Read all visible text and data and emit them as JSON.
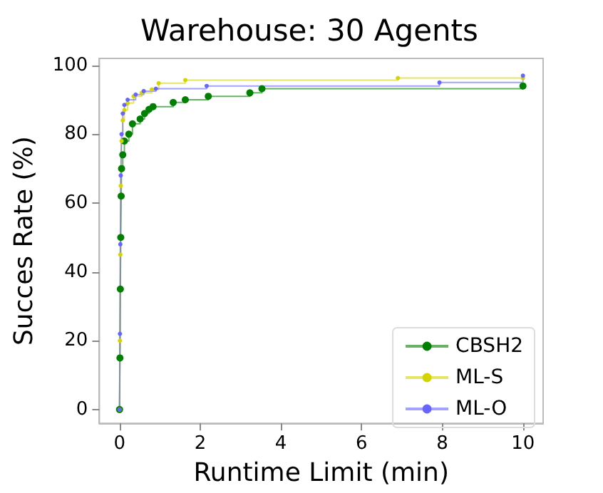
{
  "chart_data": {
    "type": "step",
    "title": "Warehouse: 30 Agents",
    "xlabel": "Runtime Limit (min)",
    "ylabel": "Succes Rate (%)",
    "xlim": [
      -0.5,
      10.5
    ],
    "xticks": [
      0,
      2,
      4,
      6,
      8,
      10
    ],
    "ylim": [
      -4,
      102
    ],
    "yticks": [
      0,
      20,
      40,
      60,
      80,
      100
    ],
    "series": [
      {
        "name": "CBSH2",
        "color": "#008000",
        "x": [
          0,
          0.01,
          0.02,
          0.03,
          0.04,
          0.05,
          0.08,
          0.12,
          0.23,
          0.32,
          0.51,
          0.62,
          0.73,
          0.83,
          1.33,
          1.63,
          2.2,
          3.23,
          3.53,
          10
        ],
        "values": [
          0,
          15,
          35,
          50,
          62,
          70,
          74,
          78,
          80,
          83,
          84.4,
          86,
          87.2,
          88,
          89.2,
          90,
          91,
          92,
          93.2,
          94
        ]
      },
      {
        "name": "ML-S",
        "color": "#d4d400",
        "x": [
          0,
          0.01,
          0.02,
          0.03,
          0.05,
          0.08,
          0.12,
          0.2,
          0.35,
          0.55,
          0.8,
          0.97,
          1.63,
          6.9,
          10
        ],
        "values": [
          0,
          20,
          45,
          65,
          78,
          84,
          87,
          89,
          91,
          92,
          93,
          94.8,
          95.7,
          96.3,
          96.3
        ]
      },
      {
        "name": "ML-O",
        "color": "#6666ff",
        "x": [
          0,
          0.01,
          0.02,
          0.03,
          0.05,
          0.08,
          0.12,
          0.2,
          0.4,
          0.6,
          0.9,
          2.16,
          7.93,
          10
        ],
        "values": [
          0,
          22,
          48,
          68,
          80,
          86,
          88.5,
          90,
          91.5,
          92.5,
          93.2,
          94,
          95,
          97
        ]
      }
    ],
    "marker": "circle",
    "legend": "bottom right",
    "grid": false
  }
}
